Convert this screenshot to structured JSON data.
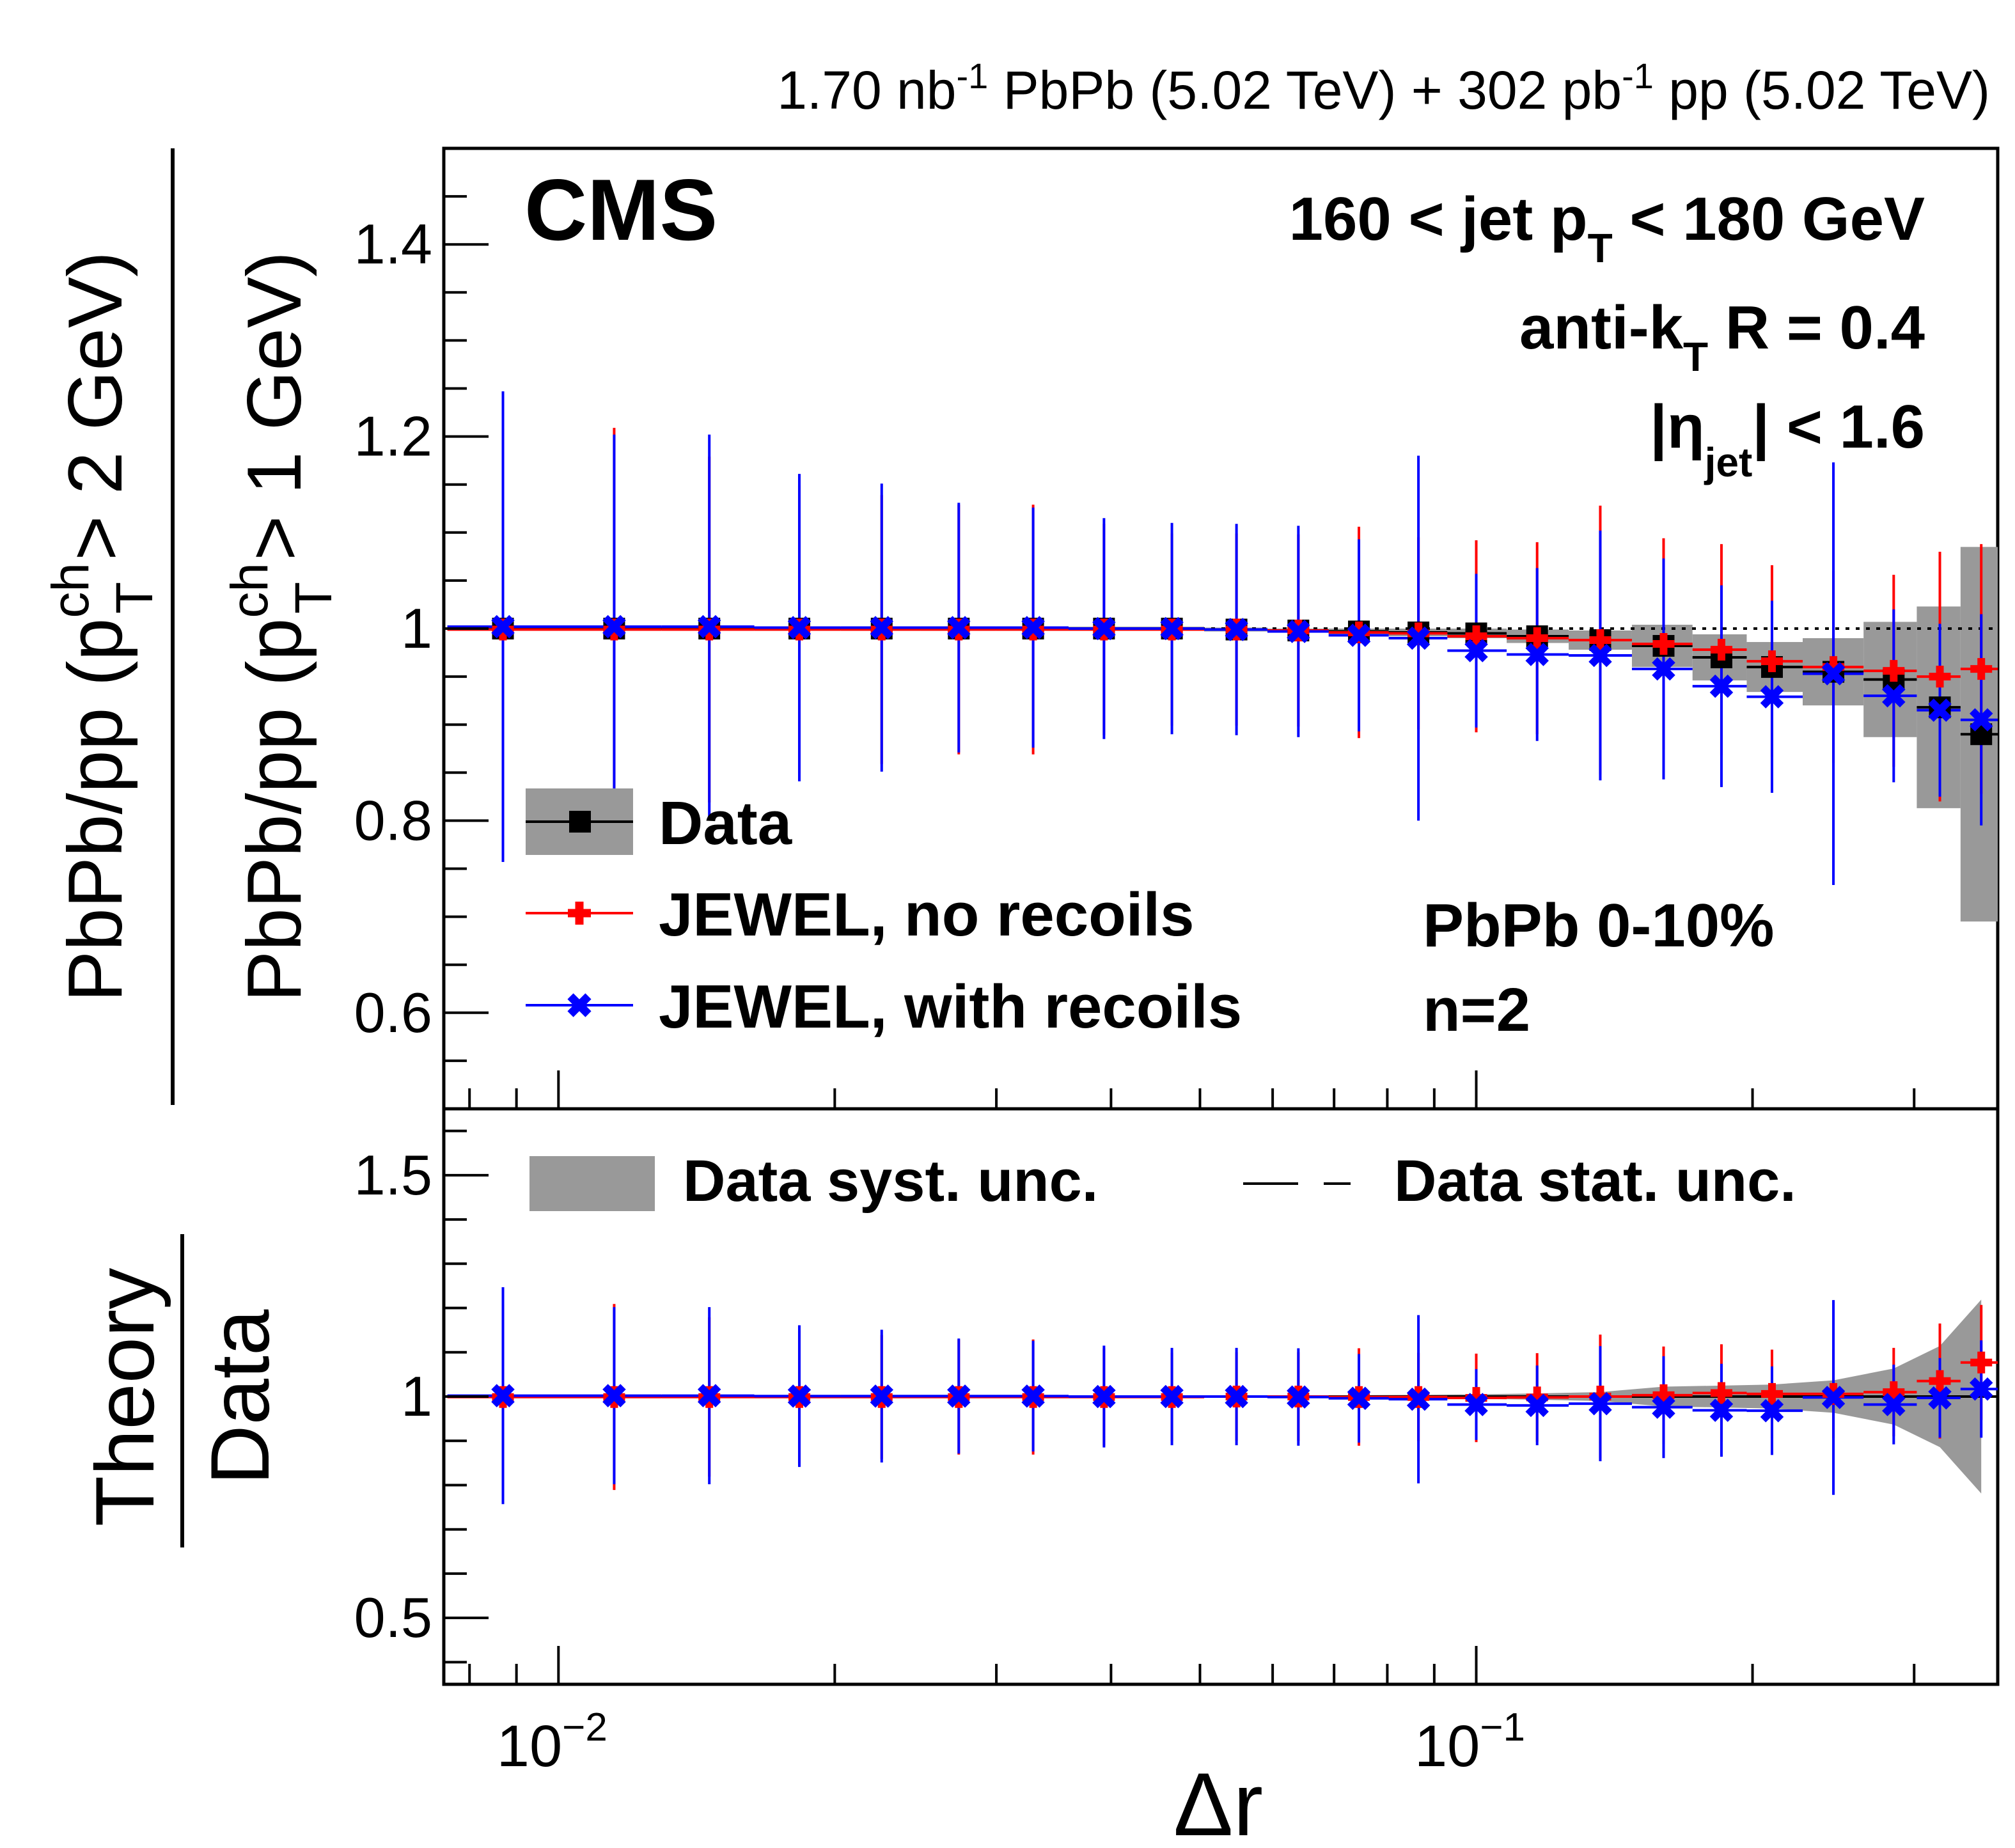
{
  "header": {
    "lumi_pbpb": "1.70 nb",
    "lumi_pbpb_exp": "-1",
    "lumi_pbpb_tail": " PbPb (5.02 TeV) + 302 pb",
    "lumi_pp_exp": "-1",
    "lumi_pp_tail": " pp (5.02 TeV)"
  },
  "labels": {
    "experiment": "CMS",
    "jet_pt_pre": "160 < jet p",
    "jet_pt_sub": "T",
    "jet_pt_post": " < 180 GeV",
    "algo_pre": "anti-k",
    "algo_sub": "T",
    "algo_post": " R = 0.4",
    "eta_pre": "|η",
    "eta_sub": "jet",
    "eta_post": "| < 1.6",
    "centrality": "PbPb 0-10%",
    "nlabel": "n=2"
  },
  "axes": {
    "top_ylabel_num_pre": "PbPb/pp (p",
    "top_ylabel_num_sup": "ch",
    "top_ylabel_num_sub": "T",
    "top_ylabel_num_post": " > 2 GeV)",
    "top_ylabel_den_pre": "PbPb/pp (p",
    "top_ylabel_den_sup": "ch",
    "top_ylabel_den_sub": "T",
    "top_ylabel_den_post": " > 1 GeV)",
    "bottom_ylabel_num": "Theory",
    "bottom_ylabel_den": "Data",
    "xlabel": "Δr",
    "xtick_major_labels": [
      {
        "base": "10",
        "exp": "−2",
        "value": 0.01
      },
      {
        "base": "10",
        "exp": "−1",
        "value": 0.1
      }
    ],
    "top_yticks": [
      "0.6",
      "0.8",
      "1",
      "1.2",
      "1.4"
    ],
    "bottom_yticks": [
      "0.5",
      "1",
      "1.5"
    ]
  },
  "legend": {
    "data": "Data",
    "jewel_norecoil": "JEWEL, no recoils",
    "jewel_recoil": "JEWEL, with recoils",
    "syst": "Data syst. unc.",
    "stat": "Data stat. unc."
  },
  "colors": {
    "data": "#000000",
    "jewel_norecoil": "#ff0000",
    "jewel_recoil": "#0000ff",
    "syst_band": "#999999"
  },
  "chart_data": [
    {
      "type": "scatter",
      "panel": "top",
      "xscale": "log",
      "xlim": [
        0.0075,
        0.37
      ],
      "ylim": [
        0.5,
        1.5
      ],
      "x": [
        0.0087,
        0.0115,
        0.0146,
        0.0183,
        0.0225,
        0.0273,
        0.0329,
        0.0393,
        0.0466,
        0.0548,
        0.064,
        0.0745,
        0.0865,
        0.1,
        0.1165,
        0.1365,
        0.16,
        0.185,
        0.21,
        0.245,
        0.285,
        0.32,
        0.355
      ],
      "series": [
        {
          "name": "Data",
          "values": [
            1.0,
            1.0,
            1.0,
            1.0,
            1.0,
            1.0,
            1.0,
            1.0,
            1.0,
            0.999,
            0.998,
            0.997,
            0.996,
            0.995,
            0.992,
            0.988,
            0.982,
            0.97,
            0.96,
            0.955,
            0.947,
            0.918,
            0.89
          ],
          "syst": [
            0.002,
            0.002,
            0.002,
            0.002,
            0.002,
            0.002,
            0.002,
            0.002,
            0.002,
            0.002,
            0.002,
            0.003,
            0.004,
            0.005,
            0.007,
            0.01,
            0.022,
            0.024,
            0.026,
            0.035,
            0.06,
            0.105,
            0.195
          ]
        },
        {
          "name": "JEWEL, no recoils",
          "values": [
            0.999,
            0.999,
            0.999,
            0.999,
            0.999,
            0.999,
            0.999,
            0.999,
            0.999,
            0.999,
            0.998,
            0.996,
            0.995,
            0.992,
            0.99,
            0.988,
            0.984,
            0.978,
            0.966,
            0.96,
            0.956,
            0.95,
            0.958
          ],
          "err": [
            0.21,
            0.21,
            0.18,
            0.15,
            0.14,
            0.13,
            0.13,
            0.11,
            0.1,
            0.1,
            0.1,
            0.11,
            0.1,
            0.1,
            0.1,
            0.14,
            0.11,
            0.11,
            0.1,
            0.1,
            0.1,
            0.13,
            0.13
          ]
        },
        {
          "name": "JEWEL, with recoils",
          "values": [
            1.002,
            1.002,
            1.002,
            1.001,
            1.001,
            1.001,
            1.001,
            1.0,
            1.0,
            0.999,
            0.997,
            0.993,
            0.99,
            0.977,
            0.973,
            0.972,
            0.958,
            0.94,
            0.929,
            0.953,
            0.93,
            0.915,
            0.905
          ],
          "err": [
            0.245,
            0.2,
            0.2,
            0.16,
            0.15,
            0.13,
            0.125,
            0.115,
            0.11,
            0.11,
            0.11,
            0.1,
            0.19,
            0.08,
            0.09,
            0.13,
            0.115,
            0.105,
            0.1,
            0.22,
            0.09,
            0.09,
            0.11
          ]
        }
      ]
    },
    {
      "type": "scatter",
      "panel": "bottom",
      "xscale": "log",
      "xlim": [
        0.0075,
        0.37
      ],
      "ylim": [
        0.35,
        1.65
      ],
      "x": [
        0.0087,
        0.0115,
        0.0146,
        0.0183,
        0.0225,
        0.0273,
        0.0329,
        0.0393,
        0.0466,
        0.0548,
        0.064,
        0.0745,
        0.0865,
        0.1,
        0.1165,
        0.1365,
        0.16,
        0.185,
        0.21,
        0.245,
        0.285,
        0.32,
        0.355
      ],
      "series": [
        {
          "name": "JEWEL, no recoils",
          "values": [
            0.999,
            0.999,
            0.999,
            0.999,
            0.999,
            0.999,
            0.999,
            0.999,
            0.999,
            1.0,
            1.0,
            0.999,
            0.999,
            0.997,
            0.998,
            1.0,
            1.003,
            1.008,
            1.006,
            1.006,
            1.01,
            1.035,
            1.077
          ],
          "err": [
            0.21,
            0.21,
            0.18,
            0.15,
            0.14,
            0.13,
            0.13,
            0.11,
            0.1,
            0.1,
            0.1,
            0.11,
            0.1,
            0.1,
            0.1,
            0.14,
            0.11,
            0.11,
            0.1,
            0.1,
            0.1,
            0.13,
            0.13
          ]
        },
        {
          "name": "JEWEL, with recoils",
          "values": [
            1.002,
            1.002,
            1.002,
            1.001,
            1.001,
            1.001,
            1.001,
            1.0,
            1.0,
            1.0,
            0.999,
            0.996,
            0.994,
            0.982,
            0.98,
            0.984,
            0.976,
            0.969,
            0.968,
            0.998,
            0.982,
            0.997,
            1.017
          ],
          "err": [
            0.245,
            0.2,
            0.2,
            0.16,
            0.15,
            0.13,
            0.125,
            0.115,
            0.11,
            0.11,
            0.11,
            0.1,
            0.19,
            0.08,
            0.09,
            0.13,
            0.115,
            0.105,
            0.1,
            0.22,
            0.09,
            0.09,
            0.11
          ]
        }
      ]
    }
  ]
}
